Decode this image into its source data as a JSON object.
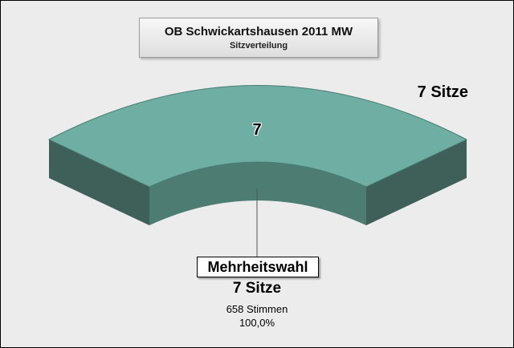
{
  "chart_data": {
    "type": "pie",
    "title": "OB Schwickartshausen 2011 MW",
    "subtitle": "Sitzverteilung",
    "total_label": "7 Sitze",
    "series": [
      {
        "name": "Mehrheitswahl",
        "value": 7,
        "value_label": "7",
        "seats_label": "7 Sitze",
        "votes_label": "658 Stimmen",
        "percent_label": "100,0%",
        "color": "#6fafa3"
      }
    ]
  }
}
